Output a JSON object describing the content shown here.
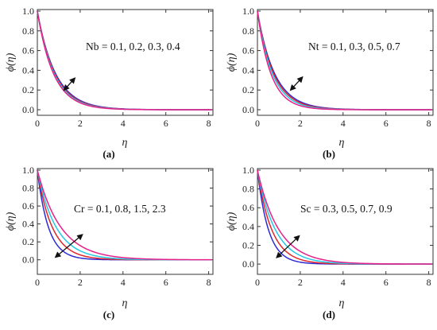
{
  "chart_data": [
    {
      "type": "line",
      "caption": "(a)",
      "annotation": "Nb = 0.1, 0.2, 0.3, 0.4",
      "xlabel": "η",
      "ylabel": "ϕ(η)",
      "xlim": [
        0,
        8.2
      ],
      "ylim": [
        0,
        1.0
      ],
      "xticks": [
        "0",
        "2",
        "4",
        "6",
        "8"
      ],
      "yticks": [
        "0.0",
        "0.2",
        "0.4",
        "0.6",
        "0.8",
        "1.0"
      ],
      "arrow": {
        "from": [
          1.75,
          0.32
        ],
        "to": [
          1.25,
          0.2
        ]
      },
      "series": [
        {
          "color": "#2b2bd6",
          "decay": 1.18
        },
        {
          "color": "#e0262a",
          "decay": 1.23
        },
        {
          "color": "#24c8e6",
          "decay": 1.28
        },
        {
          "color": "#e8208c",
          "decay": 1.33
        }
      ]
    },
    {
      "type": "line",
      "caption": "(b)",
      "annotation": "Nt = 0.1, 0.3, 0.5, 0.7",
      "xlabel": "η",
      "ylabel": "ϕ(η)",
      "xlim": [
        0,
        8.2
      ],
      "ylim": [
        0,
        1.0
      ],
      "xticks": [
        "0",
        "2",
        "4",
        "6",
        "8"
      ],
      "yticks": [
        "0.0",
        "0.2",
        "0.4",
        "0.6",
        "0.8",
        "1.0"
      ],
      "arrow": {
        "from": [
          1.55,
          0.2
        ],
        "to": [
          2.1,
          0.33
        ]
      },
      "series": [
        {
          "color": "#2b2bd6",
          "decay": 1.25
        },
        {
          "color": "#e0262a",
          "decay": 1.33
        },
        {
          "color": "#24c8e6",
          "decay": 1.44
        },
        {
          "color": "#e8208c",
          "decay": 1.6
        }
      ]
    },
    {
      "type": "line",
      "caption": "(c)",
      "annotation": "Cr = 0.1, 0.8, 1.5, 2.3",
      "xlabel": "η",
      "ylabel": "ϕ(η)",
      "xlim": [
        0,
        8.2
      ],
      "ylim": [
        -0.1,
        1.0
      ],
      "xticks": [
        "0",
        "2",
        "4",
        "6",
        "8"
      ],
      "yticks": [
        "0.0",
        "0.2",
        "0.4",
        "0.6",
        "0.8",
        "1.0"
      ],
      "arrow": {
        "from": [
          2.1,
          0.28
        ],
        "to": [
          0.85,
          0.03
        ]
      },
      "series": [
        {
          "color": "#2b2bd6",
          "decay": 1.95
        },
        {
          "color": "#e0262a",
          "decay": 1.45
        },
        {
          "color": "#24c8e6",
          "decay": 1.15
        },
        {
          "color": "#e8208c",
          "decay": 0.92
        }
      ]
    },
    {
      "type": "line",
      "caption": "(d)",
      "annotation": "Sc = 0.3, 0.5, 0.7, 0.9",
      "xlabel": "η",
      "ylabel": "ϕ(η)",
      "xlim": [
        0,
        8.2
      ],
      "ylim": [
        -0.05,
        1.0
      ],
      "xticks": [
        "0",
        "2",
        "4",
        "6",
        "8"
      ],
      "yticks": [
        "0.0",
        "0.2",
        "0.4",
        "0.6",
        "0.8",
        "1.0"
      ],
      "arrow": {
        "from": [
          1.95,
          0.3
        ],
        "to": [
          0.9,
          0.07
        ]
      },
      "series": [
        {
          "color": "#2b2bd6",
          "decay": 1.95
        },
        {
          "color": "#e0262a",
          "decay": 1.5
        },
        {
          "color": "#24c8e6",
          "decay": 1.2
        },
        {
          "color": "#e8208c",
          "decay": 1.0
        }
      ]
    }
  ]
}
